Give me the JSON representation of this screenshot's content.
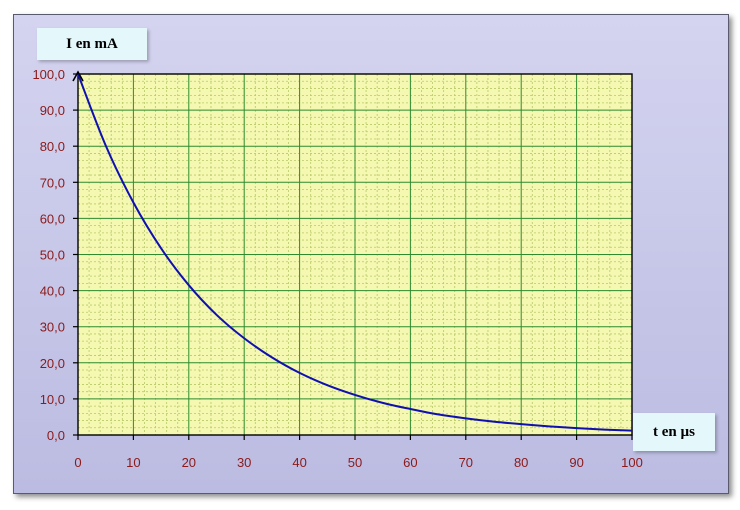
{
  "chart_data": {
    "type": "line",
    "title": "",
    "xlabel": "t en µs",
    "ylabel": "I en mA",
    "xlim": [
      0,
      100
    ],
    "ylim": [
      0,
      100
    ],
    "x_ticks": [
      "0",
      "10",
      "20",
      "30",
      "40",
      "50",
      "60",
      "70",
      "80",
      "90",
      "100"
    ],
    "y_ticks": [
      "0,0",
      "10,0",
      "20,0",
      "30,0",
      "40,0",
      "50,0",
      "60,0",
      "70,0",
      "80,0",
      "90,0",
      "100,0"
    ],
    "grid": true,
    "legend": "none",
    "colors": {
      "plot_background": "#f4f8b0",
      "major_grid": "#2e8b2e",
      "minor_grid": "#b8c86a",
      "curve": "#1010b0",
      "tick_labels": "#8b1a1a",
      "frame_background": "#c8c8ea"
    },
    "series": [
      {
        "x": [
          0,
          5,
          10,
          15,
          20,
          25,
          30,
          35,
          40,
          45,
          50,
          55,
          60,
          65,
          70,
          75,
          80,
          85,
          90,
          95,
          100
        ],
        "y": [
          100,
          80.2,
          64.4,
          51.7,
          41.5,
          33.3,
          26.8,
          21.5,
          17.2,
          13.8,
          11.1,
          8.9,
          7.2,
          5.7,
          4.6,
          3.7,
          3.0,
          2.4,
          1.9,
          1.5,
          1.2
        ]
      }
    ]
  }
}
